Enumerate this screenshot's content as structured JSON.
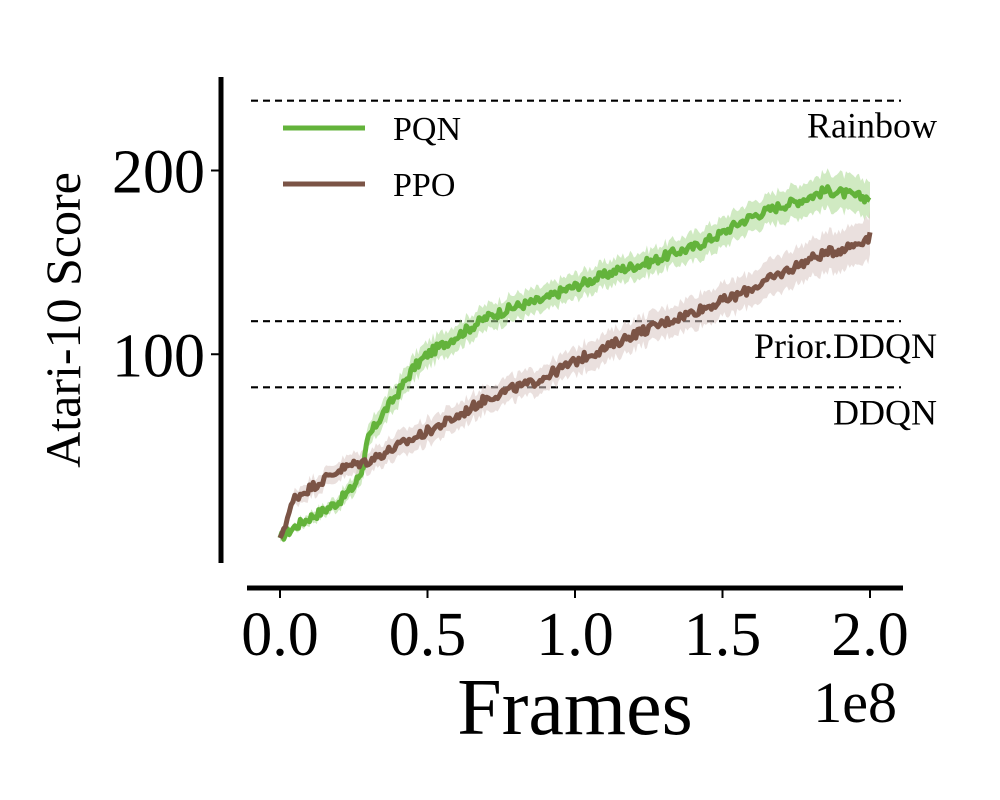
{
  "chart_data": {
    "type": "line",
    "xlabel": "Frames",
    "ylabel": "Atari-10 Score",
    "x_multiplier_label": "1e8",
    "xlim": [
      -0.1,
      2.1
    ],
    "ylim": [
      -10,
      250
    ],
    "x_ticks": [
      0.0,
      0.5,
      1.0,
      1.5,
      2.0
    ],
    "x_tick_labels": [
      "0.0",
      "0.5",
      "1.0",
      "1.5",
      "2.0"
    ],
    "y_ticks": [
      100,
      200
    ],
    "y_tick_labels": [
      "100",
      "200"
    ],
    "grid": false,
    "legend_position": "upper-left",
    "reference_lines": [
      {
        "label": "Rainbow",
        "value": 238
      },
      {
        "label": "Prior.DDQN",
        "value": 118
      },
      {
        "label": "DDQN",
        "value": 82
      }
    ],
    "series": [
      {
        "name": "PQN",
        "color": "#63b33b",
        "band_color": "#a9d98f",
        "x": [
          0.0,
          0.05,
          0.1,
          0.15,
          0.2,
          0.25,
          0.28,
          0.3,
          0.35,
          0.4,
          0.45,
          0.5,
          0.55,
          0.6,
          0.65,
          0.7,
          0.75,
          0.8,
          0.85,
          0.9,
          0.95,
          1.0,
          1.05,
          1.1,
          1.15,
          1.2,
          1.25,
          1.3,
          1.35,
          1.4,
          1.45,
          1.5,
          1.55,
          1.6,
          1.65,
          1.7,
          1.75,
          1.8,
          1.85,
          1.9,
          1.95,
          2.0
        ],
        "values": [
          0,
          6,
          11,
          15,
          20,
          28,
          38,
          55,
          68,
          79,
          92,
          100,
          105,
          110,
          115,
          120,
          123,
          126,
          128,
          130,
          134,
          137,
          140,
          143,
          146,
          148,
          150,
          153,
          156,
          158,
          162,
          166,
          171,
          175,
          178,
          181,
          183,
          186,
          189,
          188,
          186,
          185
        ],
        "band": [
          2,
          2,
          3,
          3,
          4,
          5,
          6,
          6,
          7,
          7,
          7,
          7,
          7,
          7,
          7,
          7,
          7,
          7,
          7,
          7,
          7,
          7,
          7,
          7,
          7,
          7,
          7,
          7,
          7,
          8,
          8,
          8,
          8,
          8,
          8,
          9,
          9,
          9,
          10,
          10,
          10,
          10
        ]
      },
      {
        "name": "PPO",
        "color": "#7b5446",
        "band_color": "#d9c7c2",
        "x": [
          0.0,
          0.05,
          0.1,
          0.15,
          0.2,
          0.25,
          0.3,
          0.35,
          0.4,
          0.45,
          0.5,
          0.55,
          0.6,
          0.65,
          0.7,
          0.75,
          0.8,
          0.85,
          0.9,
          0.95,
          1.0,
          1.05,
          1.1,
          1.15,
          1.2,
          1.25,
          1.3,
          1.35,
          1.4,
          1.45,
          1.5,
          1.55,
          1.6,
          1.65,
          1.7,
          1.75,
          1.8,
          1.85,
          1.9,
          1.95,
          2.0
        ],
        "values": [
          0,
          22,
          27,
          32,
          37,
          40,
          42,
          46,
          50,
          54,
          58,
          62,
          66,
          71,
          76,
          79,
          82,
          84,
          88,
          92,
          96,
          100,
          103,
          107,
          111,
          114,
          117,
          120,
          123,
          126,
          129,
          132,
          136,
          140,
          144,
          148,
          152,
          155,
          157,
          160,
          164
        ],
        "band": [
          2,
          4,
          5,
          5,
          5,
          6,
          6,
          6,
          7,
          7,
          7,
          7,
          7,
          7,
          7,
          7,
          7,
          7,
          7,
          7,
          7,
          8,
          8,
          8,
          8,
          8,
          8,
          8,
          9,
          9,
          9,
          9,
          9,
          10,
          10,
          10,
          10,
          11,
          11,
          11,
          12
        ]
      }
    ]
  }
}
